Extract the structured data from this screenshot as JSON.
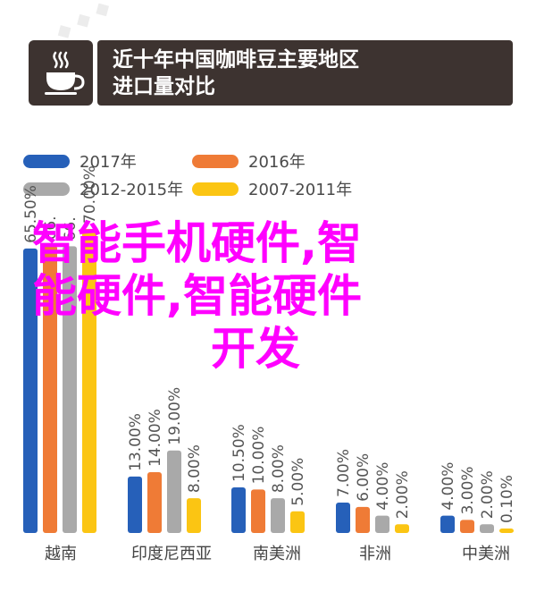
{
  "header": {
    "title_line1": "近十年中国咖啡豆主要地区",
    "title_line2": "进口量对比"
  },
  "overlay": {
    "line1": "智能手机硬件,智",
    "line2": "能硬件,智能硬件",
    "line3": "开发"
  },
  "colors": {
    "header_bg": "#3d3330",
    "overlay_text": "#ff00ff"
  },
  "chart_data": {
    "type": "bar",
    "categories": [
      "越南",
      "印度尼西亚",
      "南美洲",
      "非洲",
      "中美洲"
    ],
    "legend_position": "top-left",
    "grid": false,
    "series": [
      {
        "name": "2017年",
        "color": "#2660b9",
        "values": [
          65.5,
          13.0,
          10.5,
          7.0,
          4.0
        ],
        "labels": [
          "65.50%",
          "13.00%",
          "10.50%",
          "7.00%",
          "4.00%"
        ]
      },
      {
        "name": "2016年",
        "color": "#ef7b36",
        "values": [
          66.2,
          14.0,
          10.0,
          6.0,
          3.0
        ],
        "labels": [
          "66.",
          "14.00%",
          "10.00%",
          "6.00%",
          "3.00%"
        ]
      },
      {
        "name": "2012-2015年",
        "color": "#a9a9a9",
        "values": [
          66.0,
          19.0,
          8.0,
          4.0,
          2.0
        ],
        "labels": [
          "66.",
          "19.00%",
          "8.00%",
          "4.00%",
          "2.00%"
        ]
      },
      {
        "name": "2007-2011年",
        "color": "#fbc513",
        "values": [
          70.0,
          8.0,
          5.0,
          2.0,
          0.1
        ],
        "labels": [
          "70.00%",
          "8.00%",
          "5.00%",
          "2.00%",
          "0.10%"
        ]
      }
    ],
    "legend_order": [
      0,
      1,
      2,
      3
    ]
  }
}
